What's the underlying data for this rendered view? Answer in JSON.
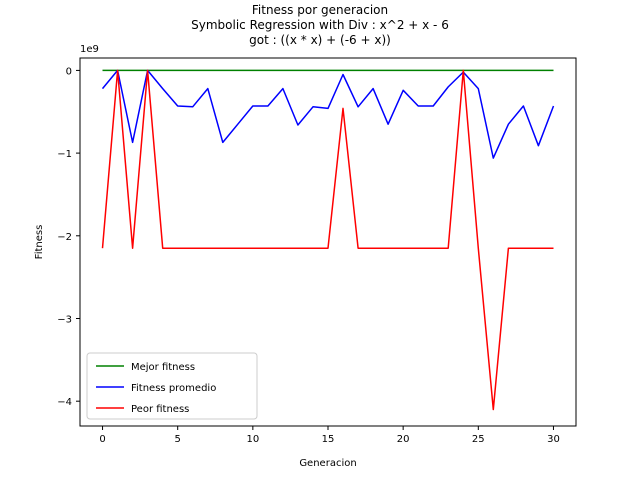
{
  "chart_data": {
    "type": "line",
    "title_lines": [
      "Fitness por generacion",
      "Symbolic Regression with Div : x^2 + x - 6",
      "got : ((x * x) + (-6 + x))"
    ],
    "xlabel": "Generacion",
    "ylabel": "Fitness",
    "y_scale_label": "1e9",
    "xlim": [
      -1.5,
      31.5
    ],
    "ylim": [
      -4.3,
      0.15
    ],
    "x_ticks": [
      0,
      5,
      10,
      15,
      20,
      25,
      30
    ],
    "y_ticks": [
      0,
      -1,
      -2,
      -3,
      -4
    ],
    "y_tick_labels": [
      "0",
      "−1",
      "−2",
      "−3",
      "−4"
    ],
    "grid": false,
    "legend_position": "lower-left",
    "x": [
      0,
      1,
      2,
      3,
      4,
      5,
      6,
      7,
      8,
      9,
      10,
      11,
      12,
      13,
      14,
      15,
      16,
      17,
      18,
      19,
      20,
      21,
      22,
      23,
      24,
      25,
      26,
      27,
      28,
      29,
      30
    ],
    "series": [
      {
        "name": "Mejor fitness",
        "color": "#008000",
        "values": [
          0,
          0,
          0,
          0,
          0,
          0,
          0,
          0,
          0,
          0,
          0,
          0,
          0,
          0,
          0,
          0,
          0,
          0,
          0,
          0,
          0,
          0,
          0,
          0,
          0,
          0,
          0,
          0,
          0,
          0,
          0
        ]
      },
      {
        "name": "Fitness promedio",
        "color": "#0000ff",
        "values": [
          -0.22,
          0.0,
          -0.87,
          0.0,
          -0.22,
          -0.43,
          -0.44,
          -0.22,
          -0.87,
          -0.65,
          -0.43,
          -0.43,
          -0.22,
          -0.66,
          -0.44,
          -0.46,
          -0.05,
          -0.44,
          -0.22,
          -0.65,
          -0.24,
          -0.43,
          -0.43,
          -0.2,
          -0.02,
          -0.22,
          -1.06,
          -0.65,
          -0.43,
          -0.91,
          -0.43
        ]
      },
      {
        "name": "Peor fitness",
        "color": "#ff0000",
        "values": [
          -2.15,
          0.0,
          -2.15,
          0.0,
          -2.15,
          -2.15,
          -2.15,
          -2.15,
          -2.15,
          -2.15,
          -2.15,
          -2.15,
          -2.15,
          -2.15,
          -2.15,
          -2.15,
          -0.46,
          -2.15,
          -2.15,
          -2.15,
          -2.15,
          -2.15,
          -2.15,
          -2.15,
          0.0,
          -2.15,
          -4.1,
          -2.15,
          -2.15,
          -2.15,
          -2.15
        ]
      }
    ]
  }
}
